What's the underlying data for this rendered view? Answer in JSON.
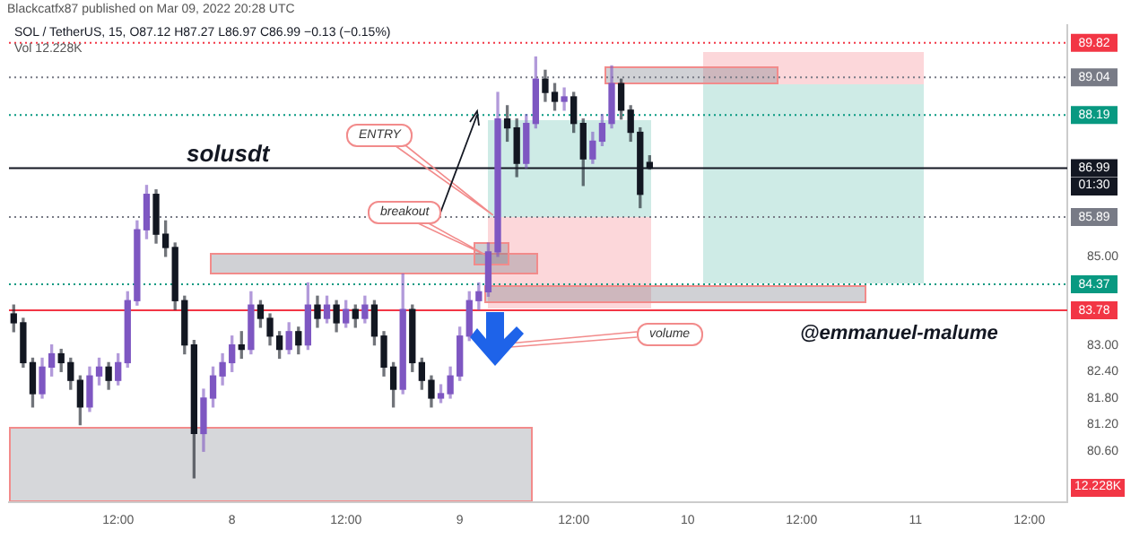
{
  "chart_data": {
    "type": "candlestick",
    "title": "SOL / TetherUS, 15, O87.12 H87.27 L86.97 C86.99 −0.13 (−0.15%)",
    "annotations": [
      "Blackcatfx87 published on Mar 09, 2022 20:28 UTC",
      "Vol 12.228K",
      "solusdt",
      {
        "text": "ENTRY",
        "x": "2022-03-09T03:30",
        "y": 85.93
      },
      {
        "text": "breakout",
        "x": "2022-03-09T03:00",
        "y": 85.0
      },
      "volume",
      "@emmanuel-malume",
      "01:30",
      "12.228K"
    ],
    "x": [
      "2022-03-07T01:00",
      "2022-03-07T02:00",
      "2022-03-07T03:00",
      "2022-03-07T04:00",
      "2022-03-07T05:00",
      "2022-03-07T06:00",
      "2022-03-07T07:00",
      "2022-03-07T08:00",
      "2022-03-07T09:00",
      "2022-03-07T10:00",
      "2022-03-07T11:00",
      "2022-03-07T12:00",
      "2022-03-07T13:00",
      "2022-03-07T14:00",
      "2022-03-07T15:00",
      "2022-03-07T16:00",
      "2022-03-07T17:00",
      "2022-03-07T18:00",
      "2022-03-07T19:00",
      "2022-03-07T20:00",
      "2022-03-07T21:00",
      "2022-03-07T22:00",
      "2022-03-07T23:00",
      "2022-03-08T00:00",
      "2022-03-08T01:00",
      "2022-03-08T02:00",
      "2022-03-08T03:00",
      "2022-03-08T04:00",
      "2022-03-08T05:00",
      "2022-03-08T06:00",
      "2022-03-08T07:00",
      "2022-03-08T08:00",
      "2022-03-08T09:00",
      "2022-03-08T10:00",
      "2022-03-08T11:00",
      "2022-03-08T12:00",
      "2022-03-08T13:00",
      "2022-03-08T14:00",
      "2022-03-08T15:00",
      "2022-03-08T16:00",
      "2022-03-08T17:00",
      "2022-03-08T18:00",
      "2022-03-08T19:00",
      "2022-03-08T20:00",
      "2022-03-08T21:00",
      "2022-03-08T22:00",
      "2022-03-08T23:00",
      "2022-03-09T00:00",
      "2022-03-09T01:00",
      "2022-03-09T02:00",
      "2022-03-09T03:00",
      "2022-03-09T04:00",
      "2022-03-09T05:00",
      "2022-03-09T06:00",
      "2022-03-09T07:00",
      "2022-03-09T08:00",
      "2022-03-09T09:00",
      "2022-03-09T10:00",
      "2022-03-09T11:00",
      "2022-03-09T12:00",
      "2022-03-09T13:00",
      "2022-03-09T14:00",
      "2022-03-09T15:00",
      "2022-03-09T16:00",
      "2022-03-09T17:00",
      "2022-03-09T18:00",
      "2022-03-09T19:00",
      "2022-03-09T20:00"
    ],
    "ohlc": [
      [
        83.7,
        83.9,
        83.3,
        83.5
      ],
      [
        83.5,
        83.6,
        82.5,
        82.6
      ],
      [
        82.6,
        82.7,
        81.6,
        81.9
      ],
      [
        81.9,
        82.7,
        81.8,
        82.5
      ],
      [
        82.5,
        83.0,
        82.3,
        82.8
      ],
      [
        82.8,
        82.9,
        82.4,
        82.6
      ],
      [
        82.6,
        82.7,
        82.0,
        82.2
      ],
      [
        82.2,
        82.3,
        81.2,
        81.6
      ],
      [
        81.6,
        82.5,
        81.5,
        82.3
      ],
      [
        82.3,
        82.7,
        82.1,
        82.5
      ],
      [
        82.5,
        82.6,
        82.0,
        82.2
      ],
      [
        82.2,
        82.8,
        82.1,
        82.6
      ],
      [
        82.6,
        84.2,
        82.5,
        84.0
      ],
      [
        84.0,
        85.8,
        83.9,
        85.6
      ],
      [
        85.6,
        86.6,
        85.4,
        86.4
      ],
      [
        86.4,
        86.5,
        85.3,
        85.5
      ],
      [
        85.5,
        85.8,
        85.0,
        85.2
      ],
      [
        85.2,
        85.3,
        83.8,
        84.0
      ],
      [
        84.0,
        84.1,
        82.8,
        83.0
      ],
      [
        83.0,
        83.1,
        80.0,
        81.0
      ],
      [
        81.0,
        82.0,
        80.6,
        81.8
      ],
      [
        81.8,
        82.5,
        81.6,
        82.3
      ],
      [
        82.3,
        82.8,
        82.1,
        82.6
      ],
      [
        82.6,
        83.2,
        82.4,
        83.0
      ],
      [
        83.0,
        83.3,
        82.7,
        82.9
      ],
      [
        82.9,
        84.2,
        82.8,
        83.9
      ],
      [
        83.9,
        84.0,
        83.4,
        83.6
      ],
      [
        83.6,
        83.7,
        83.0,
        83.2
      ],
      [
        83.2,
        83.3,
        82.7,
        82.9
      ],
      [
        82.9,
        83.5,
        82.8,
        83.3
      ],
      [
        83.3,
        83.4,
        82.8,
        83.0
      ],
      [
        83.0,
        84.4,
        82.9,
        83.9
      ],
      [
        83.9,
        84.1,
        83.4,
        83.6
      ],
      [
        83.6,
        84.1,
        83.5,
        83.9
      ],
      [
        83.9,
        84.0,
        83.3,
        83.5
      ],
      [
        83.5,
        84.0,
        83.4,
        83.8
      ],
      [
        83.8,
        83.9,
        83.4,
        83.6
      ],
      [
        83.6,
        84.1,
        83.5,
        83.9
      ],
      [
        83.9,
        84.0,
        83.0,
        83.2
      ],
      [
        83.2,
        83.3,
        82.3,
        82.5
      ],
      [
        82.5,
        82.6,
        81.6,
        82.0
      ],
      [
        82.0,
        84.6,
        81.9,
        83.8
      ],
      [
        83.8,
        83.9,
        82.4,
        82.6
      ],
      [
        82.6,
        82.7,
        82.0,
        82.2
      ],
      [
        82.2,
        82.3,
        81.6,
        81.8
      ],
      [
        81.8,
        82.1,
        81.7,
        81.9
      ],
      [
        81.9,
        82.5,
        81.8,
        82.3
      ],
      [
        82.3,
        83.4,
        82.2,
        83.2
      ],
      [
        83.2,
        84.2,
        83.1,
        84.0
      ],
      [
        84.0,
        84.4,
        83.8,
        84.2
      ],
      [
        84.2,
        85.3,
        84.1,
        85.1
      ],
      [
        85.1,
        88.7,
        85.0,
        88.1
      ],
      [
        88.1,
        88.4,
        87.6,
        87.9
      ],
      [
        87.9,
        88.1,
        86.8,
        87.1
      ],
      [
        87.1,
        88.2,
        87.0,
        88.0
      ],
      [
        88.0,
        89.5,
        87.9,
        89.0
      ],
      [
        89.0,
        89.2,
        88.5,
        88.7
      ],
      [
        88.7,
        88.9,
        88.3,
        88.5
      ],
      [
        88.5,
        88.8,
        88.3,
        88.6
      ],
      [
        88.6,
        88.7,
        87.8,
        88.0
      ],
      [
        88.0,
        88.1,
        86.6,
        87.2
      ],
      [
        87.2,
        87.8,
        87.1,
        87.6
      ],
      [
        87.6,
        88.2,
        87.5,
        88.0
      ],
      [
        88.0,
        89.3,
        87.9,
        88.9
      ],
      [
        88.9,
        89.0,
        88.1,
        88.3
      ],
      [
        88.3,
        88.4,
        87.6,
        87.8
      ],
      [
        87.8,
        87.9,
        86.1,
        86.4
      ],
      [
        87.12,
        87.27,
        86.97,
        86.99
      ]
    ],
    "xlim": [
      "2022-03-07T00:30",
      "2022-03-11T16:00"
    ],
    "xticks": [
      {
        "value": "2022-03-07T12:00",
        "label": "12:00"
      },
      {
        "value": "2022-03-08T00:00",
        "label": "8"
      },
      {
        "value": "2022-03-08T12:00",
        "label": "12:00"
      },
      {
        "value": "2022-03-09T00:00",
        "label": "9"
      },
      {
        "value": "2022-03-09T12:00",
        "label": "12:00"
      },
      {
        "value": "2022-03-10T00:00",
        "label": "10"
      },
      {
        "value": "2022-03-10T12:00",
        "label": "12:00"
      },
      {
        "value": "2022-03-11T00:00",
        "label": "11"
      },
      {
        "value": "2022-03-11T12:00",
        "label": "12:00"
      }
    ],
    "ylim": [
      79.45,
      90.22
    ],
    "yticks": [
      {
        "value": 85,
        "label": "85.00"
      },
      {
        "value": 83,
        "label": "83.00"
      },
      {
        "value": 82.4,
        "label": "82.40"
      },
      {
        "value": 81.8,
        "label": "81.80"
      },
      {
        "value": 81.2,
        "label": "81.20"
      },
      {
        "value": 80.6,
        "label": "80.60"
      }
    ],
    "ref_lines": [
      {
        "axis": "y",
        "value": 89.82,
        "label": "89.82",
        "color": "#f23645",
        "line_style": "dotted"
      },
      {
        "axis": "y",
        "value": 89.04,
        "label": "89.04",
        "color": "#787b86",
        "line_style": "dotted"
      },
      {
        "axis": "y",
        "value": 88.19,
        "label": "88.19",
        "color": "#089981",
        "line_style": "dotted"
      },
      {
        "axis": "y",
        "value": 86.99,
        "label": "86.99",
        "color": "#131722",
        "line_style": "solid"
      },
      {
        "axis": "y",
        "value": 85.89,
        "label": "85.89",
        "color": "#787b86",
        "line_style": "dotted"
      },
      {
        "axis": "y",
        "value": 84.37,
        "label": "84.37",
        "color": "#089981",
        "line_style": "dotted"
      },
      {
        "axis": "y",
        "value": 83.78,
        "label": "83.78",
        "color": "#f23645",
        "line_style": "solid"
      }
    ],
    "grid": false,
    "legend": false
  }
}
